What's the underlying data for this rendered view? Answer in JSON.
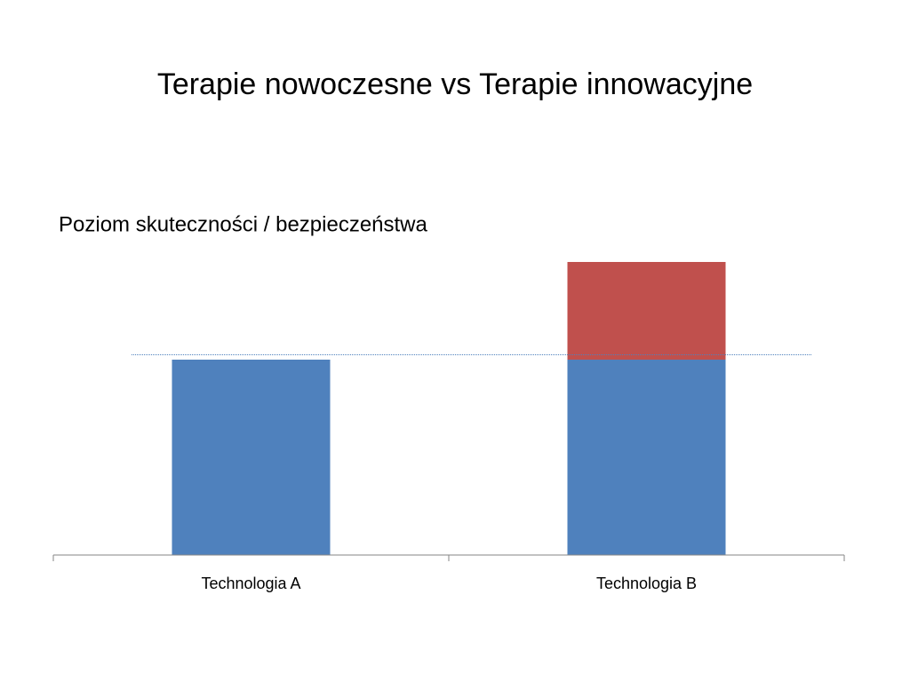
{
  "chart_data": {
    "type": "stacked_bar",
    "title": "Terapie nowoczesne vs Terapie innowacyjne",
    "ylabel": "Poziom skuteczności / bezpieczeństwa",
    "categories": [
      "Technologia A",
      "Technologia B"
    ],
    "series": [
      {
        "color": "#4f81bd",
        "values": [
          2,
          2
        ]
      },
      {
        "color": "#c0504d",
        "values": [
          null,
          1
        ]
      }
    ],
    "reference_line": 2.05,
    "reference_color": "#4f81bd",
    "ylim": [
      0,
      3
    ]
  }
}
